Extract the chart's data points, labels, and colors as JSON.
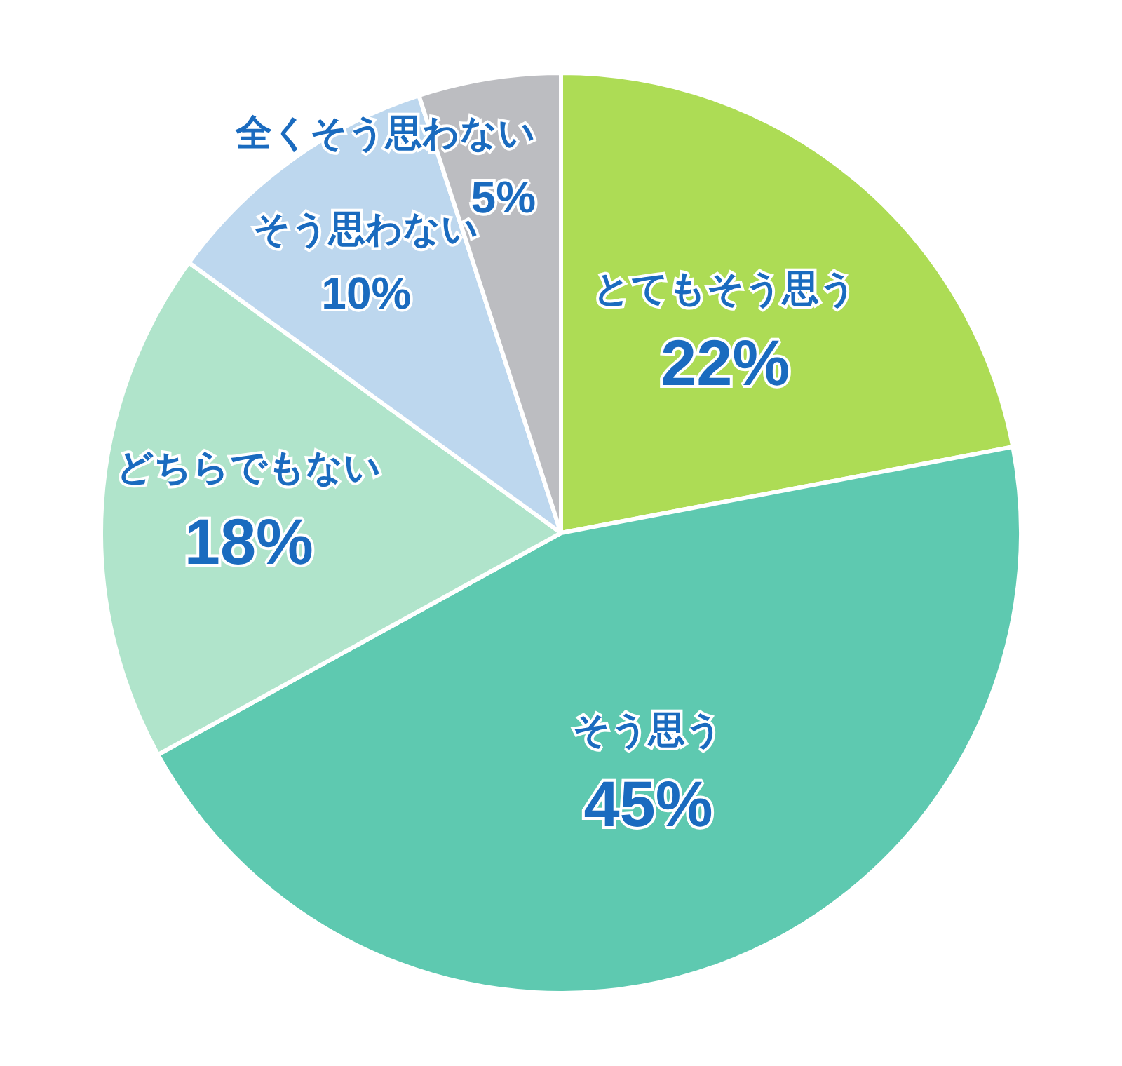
{
  "chart_data": {
    "type": "pie",
    "categories": [
      "とてもそう思う",
      "そう思う",
      "どちらでもない",
      "そう思わない",
      "全くそう思わない"
    ],
    "values": [
      22,
      45,
      18,
      10,
      5
    ],
    "value_labels": [
      "22%",
      "45%",
      "18%",
      "10%",
      "5%"
    ],
    "colors": [
      "#addc55",
      "#5ec9b0",
      "#b0e4cb",
      "#bdd7ee",
      "#bcbdc1"
    ],
    "legend": false
  }
}
